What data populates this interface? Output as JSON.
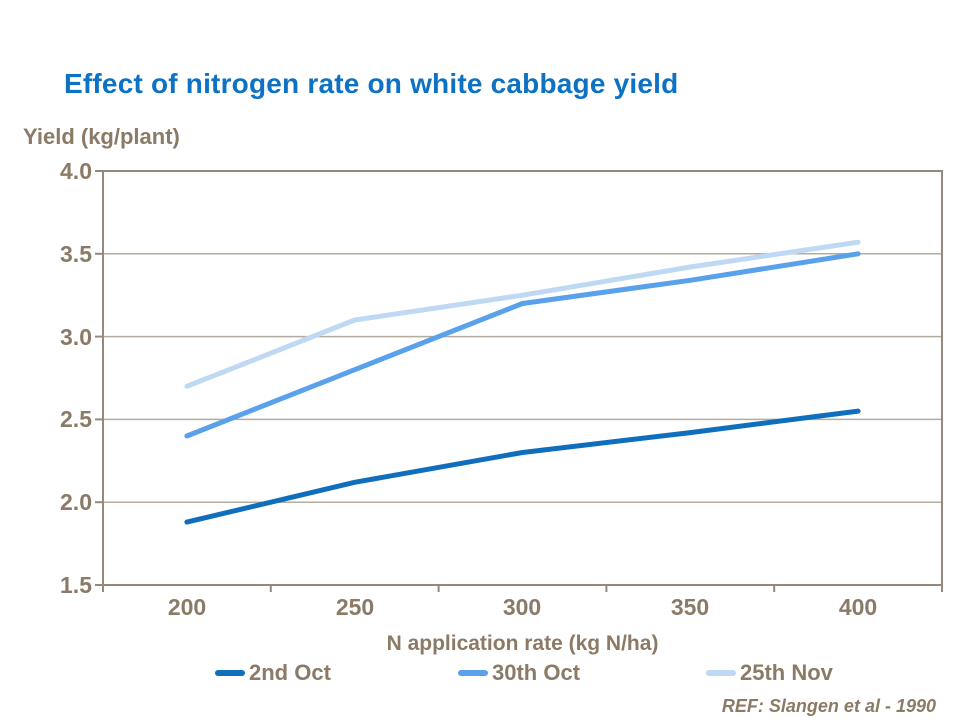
{
  "slide": {
    "reference": "REF: Slangen et al - 1990"
  },
  "colors": {
    "title_blue": "#0d72c4",
    "label_brown": "#8b7a66",
    "axis_line": "#94897c",
    "gridline": "#b5aca0",
    "background": "#ffffff"
  },
  "chart_data": {
    "type": "line",
    "title": "Effect of nitrogen rate on white cabbage yield",
    "y_axis_label": "Yield (kg/plant)",
    "x_axis_label": "N application rate (kg N/ha)",
    "categories": [
      200,
      250,
      300,
      350,
      400
    ],
    "x_tick_labels": [
      "200",
      "250",
      "300",
      "350",
      "400"
    ],
    "y_tick_labels": [
      "4.0",
      "3.5",
      "3.0",
      "2.5",
      "2.0",
      "1.5"
    ],
    "ylim": [
      1.5,
      4.0
    ],
    "y_step": 0.5,
    "grid": "horizontal",
    "legend_position": "bottom",
    "series": [
      {
        "name": "2nd Oct",
        "color": "#106fbd",
        "values": [
          1.88,
          2.12,
          2.3,
          2.42,
          2.55
        ]
      },
      {
        "name": "30th Oct",
        "color": "#5aa1ec",
        "values": [
          2.4,
          2.8,
          3.2,
          3.34,
          3.5
        ]
      },
      {
        "name": "25th Nov",
        "color": "#bfd9f4",
        "values": [
          2.7,
          3.1,
          3.25,
          3.42,
          3.57
        ]
      }
    ]
  }
}
